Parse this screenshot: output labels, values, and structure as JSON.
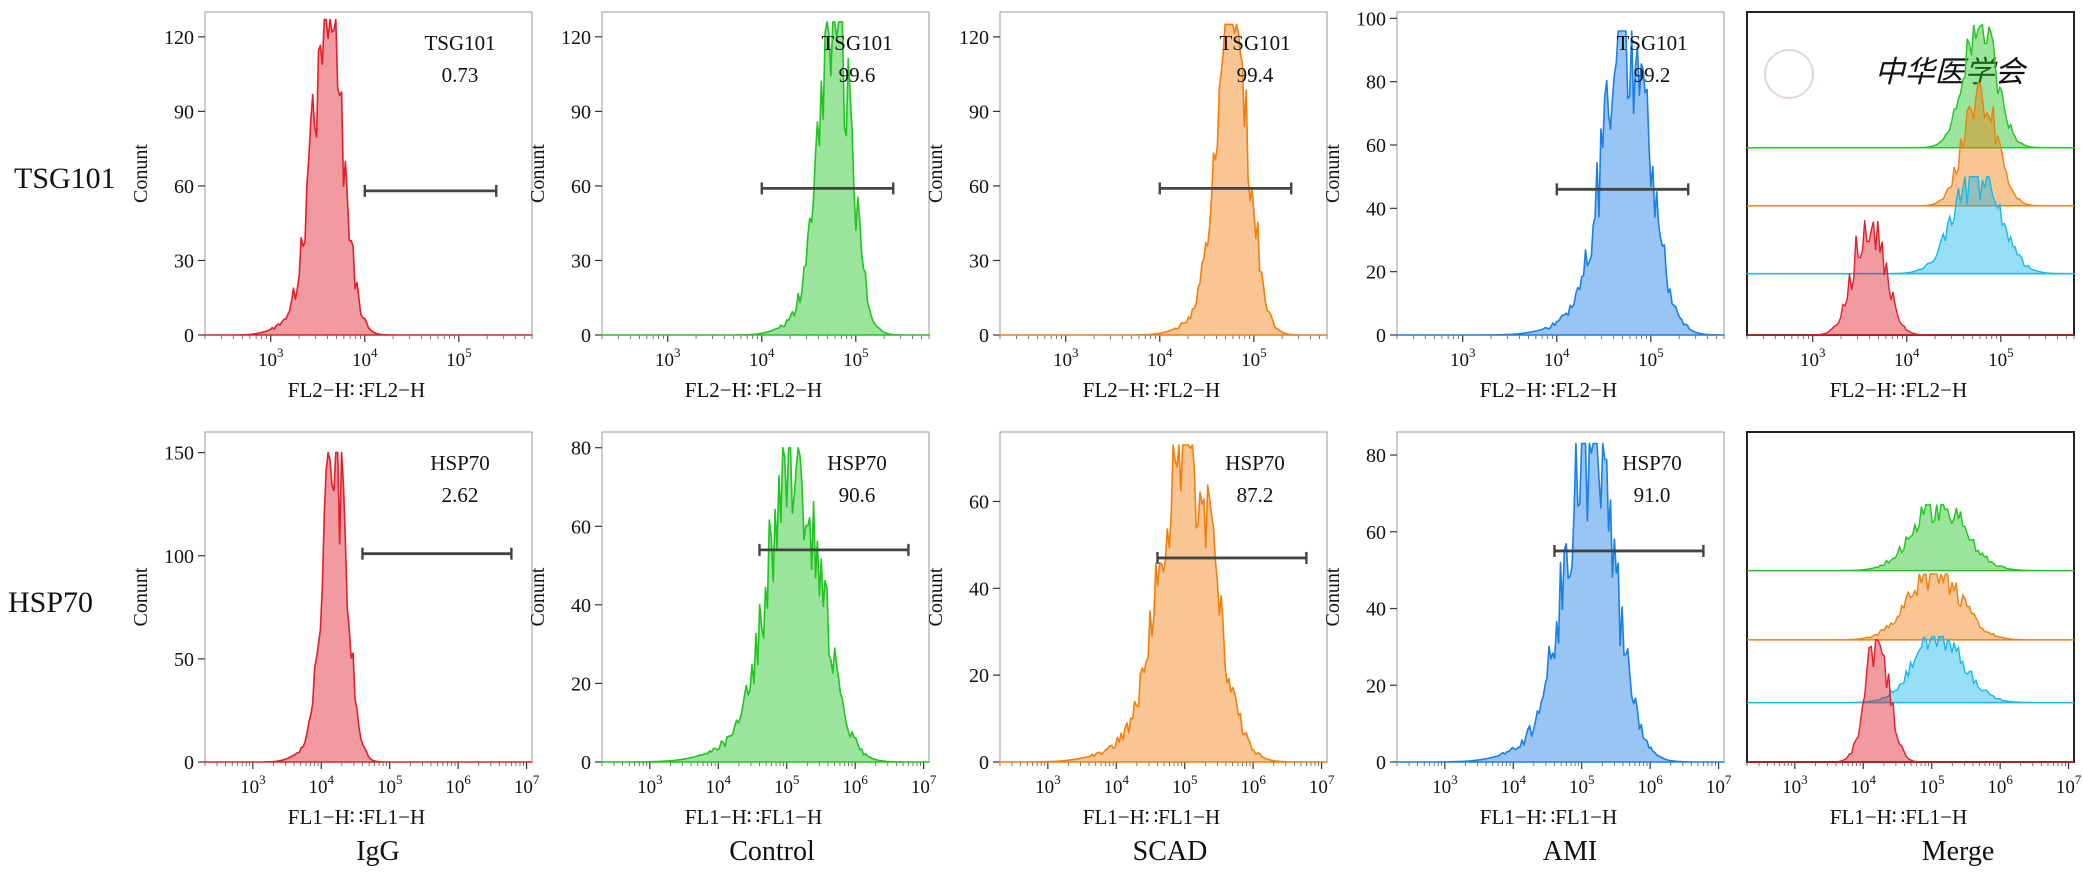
{
  "row_labels": [
    "TSG101",
    "HSP70"
  ],
  "col_labels": [
    "IgG",
    "Control",
    "SCAD",
    "AMI",
    "Merge"
  ],
  "y_axis_label": "Conunt",
  "x_axis_labels": {
    "TSG101": "FL2−H∷FL2−H",
    "HSP70": "FL1−H∷FL1−H"
  },
  "watermark_text": "中华医学会",
  "colors": {
    "IgG": "#e0202a",
    "Control": "#22c422",
    "SCAD": "#f07f10",
    "AMI": "#1a7fe6",
    "Merge_AMI": "#16b8ee",
    "gate_bar": "#444444"
  },
  "chart_data": [
    {
      "type": "histogram",
      "row": "TSG101",
      "panel": "IgG",
      "color": "#e0202a",
      "x_scale": "log",
      "xlim": [
        200,
        600000
      ],
      "x_ticks": [
        1000,
        10000,
        100000
      ],
      "tick_labels": [
        [
          "10",
          "3"
        ],
        [
          "10",
          "4"
        ],
        [
          "10",
          "5"
        ]
      ],
      "ylim": [
        0,
        130
      ],
      "y_ticks": [
        0,
        30,
        60,
        90,
        120
      ],
      "peak_x": 4000,
      "peak_y": 127,
      "width_decades": 0.16,
      "gate": {
        "x1": 10000,
        "x2": 250000,
        "y": 58
      },
      "annotation": {
        "label": "TSG101",
        "value": "0.73"
      }
    },
    {
      "type": "histogram",
      "row": "TSG101",
      "panel": "Control",
      "color": "#22c422",
      "x_scale": "log",
      "xlim": [
        200,
        600000
      ],
      "x_ticks": [
        1000,
        10000,
        100000
      ],
      "tick_labels": [
        [
          "10",
          "3"
        ],
        [
          "10",
          "4"
        ],
        [
          "10",
          "5"
        ]
      ],
      "ylim": [
        0,
        130
      ],
      "y_ticks": [
        0,
        30,
        60,
        90,
        120
      ],
      "peak_x": 60000,
      "peak_y": 126,
      "width_decades": 0.17,
      "gate": {
        "x1": 10000,
        "x2": 250000,
        "y": 59
      },
      "annotation": {
        "label": "TSG101",
        "value": "99.6"
      }
    },
    {
      "type": "histogram",
      "row": "TSG101",
      "panel": "SCAD",
      "color": "#f07f10",
      "x_scale": "log",
      "xlim": [
        200,
        600000
      ],
      "x_ticks": [
        1000,
        10000,
        100000
      ],
      "tick_labels": [
        [
          "10",
          "3"
        ],
        [
          "10",
          "4"
        ],
        [
          "10",
          "5"
        ]
      ],
      "ylim": [
        0,
        130
      ],
      "y_ticks": [
        0,
        30,
        60,
        90,
        120
      ],
      "peak_x": 60000,
      "peak_y": 125,
      "width_decades": 0.17,
      "gate": {
        "x1": 10000,
        "x2": 250000,
        "y": 59
      },
      "annotation": {
        "label": "TSG101",
        "value": "99.4"
      }
    },
    {
      "type": "histogram",
      "row": "TSG101",
      "panel": "AMI",
      "color": "#1a7fe6",
      "x_scale": "log",
      "xlim": [
        200,
        600000
      ],
      "x_ticks": [
        1000,
        10000,
        100000
      ],
      "tick_labels": [
        [
          "10",
          "3"
        ],
        [
          "10",
          "4"
        ],
        [
          "10",
          "5"
        ]
      ],
      "ylim": [
        0,
        102
      ],
      "y_ticks": [
        0,
        20,
        40,
        60,
        80,
        100
      ],
      "peak_x": 55000,
      "peak_y": 96,
      "width_decades": 0.24,
      "gate": {
        "x1": 10000,
        "x2": 250000,
        "y": 46
      },
      "annotation": {
        "label": "TSG101",
        "value": "99.2"
      }
    },
    {
      "type": "overlay",
      "row": "TSG101",
      "panel": "Merge",
      "x_scale": "log",
      "xlim": [
        200,
        600000
      ],
      "x_ticks": [
        1000,
        10000,
        100000
      ],
      "tick_labels": [
        [
          "10",
          "3"
        ],
        [
          "10",
          "4"
        ],
        [
          "10",
          "5"
        ]
      ],
      "traces": [
        {
          "color": "#22c422",
          "offset": 0.58,
          "peak_x": 60000,
          "height": 0.38,
          "width_decades": 0.17
        },
        {
          "color": "#f07f10",
          "offset": 0.4,
          "peak_x": 60000,
          "height": 0.38,
          "width_decades": 0.17
        },
        {
          "color": "#16b8ee",
          "offset": 0.19,
          "peak_x": 55000,
          "height": 0.3,
          "width_decades": 0.24
        },
        {
          "color": "#e0202a",
          "offset": 0.0,
          "peak_x": 4000,
          "height": 0.37,
          "width_decades": 0.16
        }
      ]
    },
    {
      "type": "histogram",
      "row": "HSP70",
      "panel": "IgG",
      "color": "#e0202a",
      "x_scale": "log",
      "xlim": [
        200,
        12000000
      ],
      "x_ticks": [
        1000,
        10000,
        100000,
        1000000,
        10000000
      ],
      "tick_labels": [
        [
          "10",
          "3"
        ],
        [
          "10",
          "4"
        ],
        [
          "10",
          "5"
        ],
        [
          "10",
          "6"
        ],
        [
          "10",
          "7"
        ]
      ],
      "ylim": [
        0,
        160
      ],
      "y_ticks": [
        0,
        50,
        100,
        150
      ],
      "peak_x": 16000,
      "peak_y": 150,
      "width_decades": 0.17,
      "gate": {
        "x1": 40000,
        "x2": 6000000,
        "y": 101
      },
      "annotation": {
        "label": "HSP70",
        "value": "2.62"
      }
    },
    {
      "type": "histogram",
      "row": "HSP70",
      "panel": "Control",
      "color": "#22c422",
      "x_scale": "log",
      "xlim": [
        200,
        12000000
      ],
      "x_ticks": [
        1000,
        10000,
        100000,
        1000000,
        10000000
      ],
      "tick_labels": [
        [
          "10",
          "3"
        ],
        [
          "10",
          "4"
        ],
        [
          "10",
          "5"
        ],
        [
          "10",
          "6"
        ],
        [
          "10",
          "7"
        ]
      ],
      "ylim": [
        0,
        84
      ],
      "y_ticks": [
        0,
        20,
        40,
        60,
        80
      ],
      "peak_x": 130000,
      "peak_y": 80,
      "width_decades": 0.38,
      "gate": {
        "x1": 40000,
        "x2": 6000000,
        "y": 54
      },
      "annotation": {
        "label": "HSP70",
        "value": "90.6"
      }
    },
    {
      "type": "histogram",
      "row": "HSP70",
      "panel": "SCAD",
      "color": "#f07f10",
      "x_scale": "log",
      "xlim": [
        200,
        12000000
      ],
      "x_ticks": [
        1000,
        10000,
        100000,
        1000000,
        10000000
      ],
      "tick_labels": [
        [
          "10",
          "3"
        ],
        [
          "10",
          "4"
        ],
        [
          "10",
          "5"
        ],
        [
          "10",
          "6"
        ],
        [
          "10",
          "7"
        ]
      ],
      "ylim": [
        0,
        76
      ],
      "y_ticks": [
        0,
        20,
        40,
        60
      ],
      "peak_x": 110000,
      "peak_y": 73,
      "width_decades": 0.38,
      "gate": {
        "x1": 40000,
        "x2": 6000000,
        "y": 47
      },
      "annotation": {
        "label": "HSP70",
        "value": "87.2"
      }
    },
    {
      "type": "histogram",
      "row": "HSP70",
      "panel": "AMI",
      "color": "#1a7fe6",
      "x_scale": "log",
      "xlim": [
        200,
        12000000
      ],
      "x_ticks": [
        1000,
        10000,
        100000,
        1000000,
        10000000
      ],
      "tick_labels": [
        [
          "10",
          "3"
        ],
        [
          "10",
          "4"
        ],
        [
          "10",
          "5"
        ],
        [
          "10",
          "6"
        ],
        [
          "10",
          "7"
        ]
      ],
      "ylim": [
        0,
        86
      ],
      "y_ticks": [
        0,
        20,
        40,
        60,
        80
      ],
      "peak_x": 130000,
      "peak_y": 83,
      "width_decades": 0.36,
      "gate": {
        "x1": 40000,
        "x2": 6000000,
        "y": 55
      },
      "annotation": {
        "label": "HSP70",
        "value": "91.0"
      }
    },
    {
      "type": "overlay",
      "row": "HSP70",
      "panel": "Merge",
      "x_scale": "log",
      "xlim": [
        200,
        12000000
      ],
      "x_ticks": [
        1000,
        10000,
        100000,
        1000000,
        10000000
      ],
      "tick_labels": [
        [
          "10",
          "3"
        ],
        [
          "10",
          "4"
        ],
        [
          "10",
          "5"
        ],
        [
          "10",
          "6"
        ],
        [
          "10",
          "7"
        ]
      ],
      "traces": [
        {
          "color": "#22c422",
          "offset": 0.58,
          "peak_x": 130000,
          "height": 0.2,
          "width_decades": 0.38
        },
        {
          "color": "#f07f10",
          "offset": 0.37,
          "peak_x": 110000,
          "height": 0.2,
          "width_decades": 0.38
        },
        {
          "color": "#16b8ee",
          "offset": 0.18,
          "peak_x": 130000,
          "height": 0.2,
          "width_decades": 0.36
        },
        {
          "color": "#e0202a",
          "offset": 0.0,
          "peak_x": 16000,
          "height": 0.37,
          "width_decades": 0.17
        }
      ]
    }
  ]
}
